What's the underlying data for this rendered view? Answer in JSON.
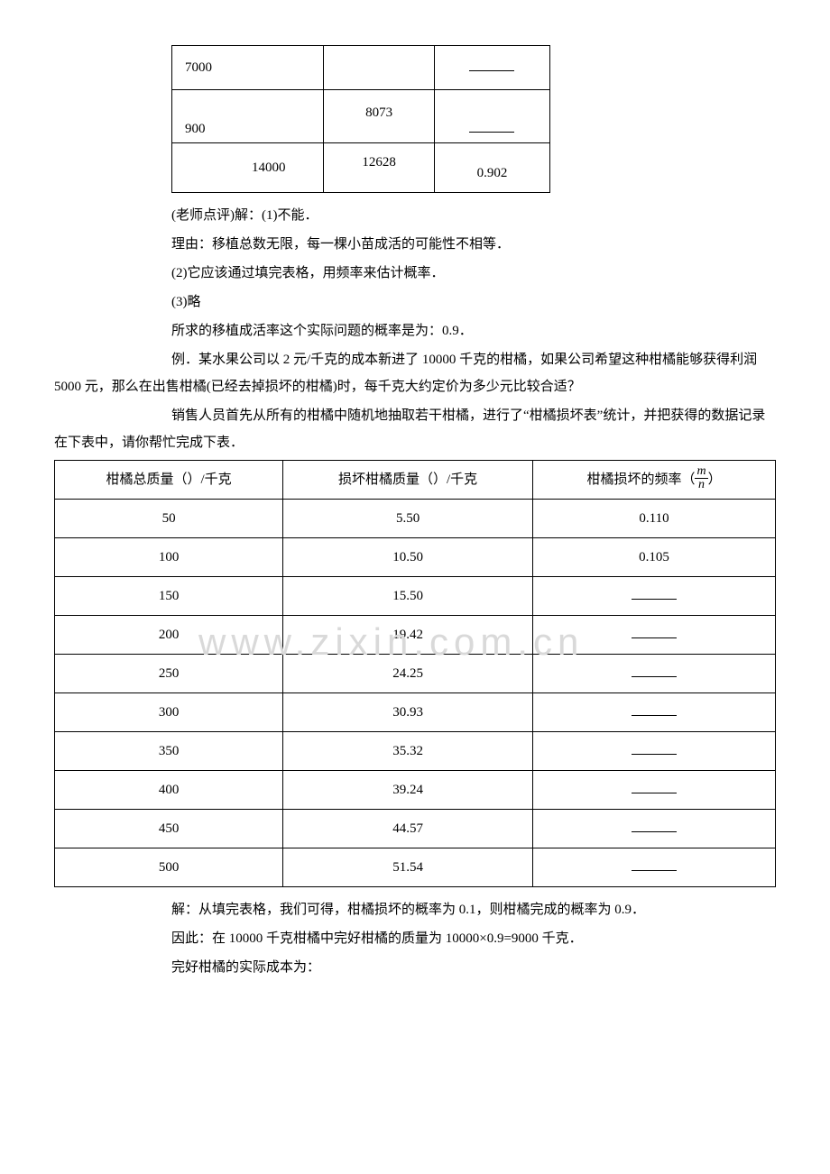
{
  "topTable": {
    "rows": [
      {
        "c1": "7000",
        "c2": "",
        "c3_blank": true
      },
      {
        "c1_bottom": "900",
        "c2": "8073",
        "c3_blank": true
      },
      {
        "c1": "14000",
        "c1_align": "right",
        "c2": "12628",
        "c3": "0.902"
      }
    ]
  },
  "paragraphs": {
    "p1": "(老师点评)解：(1)不能．",
    "p2": "理由：移植总数无限，每一棵小苗成活的可能性不相等．",
    "p3": "(2)它应该通过填完表格，用频率来估计概率．",
    "p4": "(3)略",
    "p5": "所求的移植成活率这个实际问题的概率是为：0.9．",
    "p6": "例．某水果公司以 2 元/千克的成本新进了 10000 千克的柑橘，如果公司希望这种柑橘能够获得利润 5000 元，那么在出售柑橘(已经去掉损坏的柑橘)时，每千克大约定价为多少元比较合适？",
    "p7": "销售人员首先从所有的柑橘中随机地抽取若干柑橘，进行了“柑橘损坏表”统计，并把获得的数据记录在下表中，请你帮忙完成下表．",
    "p8": "解：从填完表格，我们可得，柑橘损坏的概率为 0.1，则柑橘完成的概率为 0.9．",
    "p9": "因此：在 10000 千克柑橘中完好柑橘的质量为 10000×0.9=9000 千克．",
    "p10": "完好柑橘的实际成本为："
  },
  "mainTable": {
    "headers": {
      "h1": "柑橘总质量（）/千克",
      "h2": "损坏柑橘质量（）/千克",
      "h3_prefix": "柑橘损坏的频率（",
      "h3_suffix": "）",
      "frac_num": "m",
      "frac_den": "n"
    },
    "rows": [
      {
        "mass": "50",
        "damaged": "5.50",
        "freq": "0.110"
      },
      {
        "mass": "100",
        "damaged": "10.50",
        "freq": "0.105"
      },
      {
        "mass": "150",
        "damaged": "15.50",
        "freq_blank": true
      },
      {
        "mass": "200",
        "damaged": "19.42",
        "freq_blank": true
      },
      {
        "mass": "250",
        "damaged": "24.25",
        "freq_blank": true
      },
      {
        "mass": "300",
        "damaged": "30.93",
        "freq_blank": true
      },
      {
        "mass": "350",
        "damaged": "35.32",
        "freq_blank": true
      },
      {
        "mass": "400",
        "damaged": "39.24",
        "freq_blank": true
      },
      {
        "mass": "450",
        "damaged": "44.57",
        "freq_blank": true
      },
      {
        "mass": "500",
        "damaged": "51.54",
        "freq_blank": true
      }
    ]
  },
  "watermark": "www.zixin.com.cn"
}
